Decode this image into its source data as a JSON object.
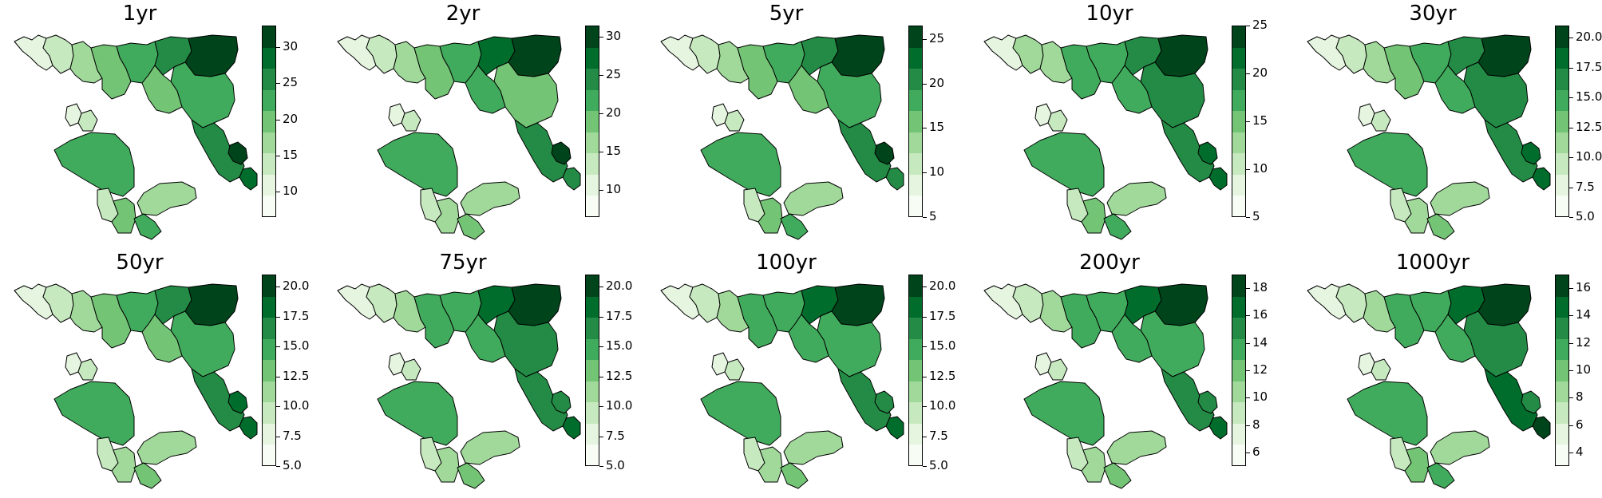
{
  "figure": {
    "type": "choropleth-small-multiples",
    "colormap": "Greens",
    "levels": 8
  },
  "colors": [
    "#f7fcf5",
    "#e5f5e0",
    "#c7e9c0",
    "#a1d99b",
    "#74c476",
    "#41ab5d",
    "#238b45",
    "#006d2c",
    "#00441b"
  ],
  "panels": [
    {
      "title": "1yr",
      "ticks": [
        "10",
        "15",
        "20",
        "25",
        "30"
      ],
      "tick_values": [
        10,
        15,
        20,
        25,
        30
      ],
      "range": [
        6.5,
        33
      ],
      "regions": [
        1,
        2,
        3,
        4,
        5,
        6,
        8,
        7,
        1,
        2,
        5,
        4,
        6,
        5,
        3,
        2,
        8,
        4,
        5
      ]
    },
    {
      "title": "2yr",
      "ticks": [
        "10",
        "15",
        "20",
        "25",
        "30"
      ],
      "tick_values": [
        10,
        15,
        20,
        25,
        30
      ],
      "range": [
        6.5,
        31.5
      ],
      "regions": [
        1,
        2,
        3,
        4,
        5,
        7,
        8,
        6,
        1,
        2,
        4,
        5,
        6,
        5,
        3,
        2,
        8,
        3,
        4
      ]
    },
    {
      "title": "5yr",
      "ticks": [
        "5",
        "10",
        "15",
        "20",
        "25"
      ],
      "tick_values": [
        5,
        10,
        15,
        20,
        25
      ],
      "range": [
        5,
        26.5
      ],
      "regions": [
        1,
        2,
        3,
        4,
        5,
        6,
        8,
        6,
        1,
        2,
        5,
        4,
        6,
        5,
        3,
        2,
        8,
        4,
        5
      ]
    },
    {
      "title": "10yr",
      "ticks": [
        "5",
        "10",
        "15",
        "20",
        "25"
      ],
      "tick_values": [
        5,
        10,
        15,
        20,
        25
      ],
      "range": [
        5,
        25
      ],
      "regions": [
        1,
        3,
        3,
        5,
        5,
        6,
        8,
        7,
        1,
        2,
        6,
        5,
        6,
        5,
        3,
        2,
        7,
        4,
        5
      ]
    },
    {
      "title": "30yr",
      "ticks": [
        "5.0",
        "7.5",
        "10.0",
        "12.5",
        "15.0",
        "17.5",
        "20.0"
      ],
      "tick_values": [
        5,
        7.5,
        10,
        12.5,
        15,
        17.5,
        20
      ],
      "range": [
        5,
        21
      ],
      "regions": [
        1,
        2,
        3,
        4,
        5,
        6,
        8,
        7,
        1,
        2,
        6,
        5,
        6,
        5,
        3,
        2,
        7,
        3,
        4
      ]
    },
    {
      "title": "50yr",
      "ticks": [
        "5.0",
        "7.5",
        "10.0",
        "12.5",
        "15.0",
        "17.5",
        "20.0"
      ],
      "tick_values": [
        5,
        7.5,
        10,
        12.5,
        15,
        17.5,
        20
      ],
      "range": [
        5,
        21
      ],
      "regions": [
        1,
        2,
        3,
        4,
        5,
        6,
        8,
        7,
        1,
        2,
        5,
        4,
        6,
        5,
        3,
        2,
        7,
        3,
        4
      ]
    },
    {
      "title": "75yr",
      "ticks": [
        "5.0",
        "7.5",
        "10.0",
        "12.5",
        "15.0",
        "17.5",
        "20.0"
      ],
      "tick_values": [
        5,
        7.5,
        10,
        12.5,
        15,
        17.5,
        20
      ],
      "range": [
        5,
        21
      ],
      "regions": [
        1,
        2,
        3,
        5,
        5,
        7,
        8,
        7,
        1,
        2,
        6,
        5,
        6,
        5,
        3,
        2,
        6,
        3,
        4
      ]
    },
    {
      "title": "100yr",
      "ticks": [
        "5.0",
        "7.5",
        "10.0",
        "12.5",
        "15.0",
        "17.5",
        "20.0"
      ],
      "tick_values": [
        5,
        7.5,
        10,
        12.5,
        15,
        17.5,
        20
      ],
      "range": [
        5,
        21
      ],
      "regions": [
        1,
        2,
        3,
        5,
        5,
        7,
        8,
        7,
        1,
        2,
        5,
        5,
        6,
        5,
        3,
        2,
        6,
        3,
        4
      ]
    },
    {
      "title": "200yr",
      "ticks": [
        "6",
        "8",
        "10",
        "12",
        "14",
        "16",
        "18"
      ],
      "tick_values": [
        6,
        8,
        10,
        12,
        14,
        16,
        18
      ],
      "range": [
        5,
        19
      ],
      "regions": [
        1,
        2,
        3,
        5,
        5,
        7,
        8,
        7,
        1,
        2,
        5,
        5,
        6,
        5,
        3,
        2,
        6,
        3,
        4
      ]
    },
    {
      "title": "1000yr",
      "ticks": [
        "4",
        "6",
        "8",
        "10",
        "12",
        "14",
        "16"
      ],
      "tick_values": [
        4,
        6,
        8,
        10,
        12,
        14,
        16
      ],
      "range": [
        3,
        17
      ],
      "regions": [
        1,
        2,
        3,
        5,
        5,
        7,
        8,
        8,
        1,
        2,
        6,
        5,
        7,
        5,
        3,
        2,
        6,
        4,
        5
      ]
    }
  ]
}
